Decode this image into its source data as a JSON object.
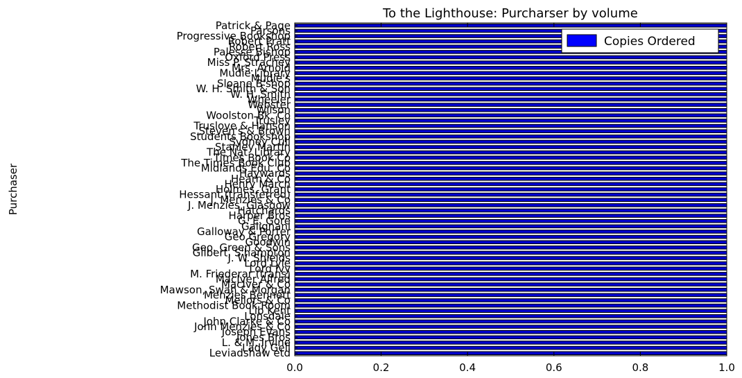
{
  "chart_data": {
    "type": "bar",
    "orientation": "horizontal",
    "title": "To the Lighthouse: Purcharser by volume",
    "xlabel": "",
    "ylabel": "Purchaser",
    "xlim": [
      0,
      1.0
    ],
    "xticks": [
      "0.0",
      "0.2",
      "0.4",
      "0.6",
      "0.8",
      "1.0"
    ],
    "grid": false,
    "legend": {
      "placement": "top-right",
      "entries": [
        "Copies Ordered"
      ]
    },
    "colors": {
      "bar": "#0000cd",
      "bar_edge": "#000000",
      "legend_patch": "#0000ff"
    },
    "categories": [
      "Leviadshaw etd",
      "Lady Gell",
      "L. & M. Irvine",
      "Jones Bros",
      "Joseph Evans",
      "John Menzies & Co",
      "John Clarke & Co",
      "Lonsdale",
      "Lib Kent",
      "Methodist Book Room",
      "Mellors & Co",
      "Menzies Bennett",
      "Mawson, Swan & Morgan",
      "MacIver & Co",
      "MacIver Alfred",
      "M. Friederar (trans)",
      "Lord Ivy",
      "Lord Lyle",
      "J. W. Shields",
      "Gilbert, S'hampton",
      "Geo. Green & Sons",
      "Goodwin",
      "Geo Gregory",
      "Galloway & Porter",
      "Galignani",
      "G. E. Gore",
      "Harper Bros",
      "Hatchards",
      "J. Menzies, Glasgow",
      "J. Menzies & Co",
      "Hessant (transferred)",
      "Holmes, Grant",
      "Henry March",
      "Hearn & Co",
      "Haywards",
      "Midlands Edu. Co",
      "The Times Book Club",
      "Times Book Co",
      "The Nat. Library",
      "Stanley Martin",
      "Sydney Cull",
      "Students Bookshop",
      "Steven's & Brown",
      "Truslove & Hanson",
      "Trusley",
      "Woolston Bk. Co",
      "Wilson",
      "Webster",
      "Wheeler",
      "W. H. Smith",
      "W. H. Smith & Son",
      "Sloane B'shop",
      "Mudie's",
      "Mudie Library",
      "Mrs. Arnold",
      "Miss P. Strachey",
      "Oxford Press",
      "Palesse Bishop",
      "Robert Ross",
      "Robert Pratt",
      "Progressive Bookshop",
      "Parsons",
      "Patrick & Page"
    ],
    "series": [
      {
        "name": "Copies Ordered",
        "values": [
          1,
          1,
          1,
          1,
          1,
          1,
          1,
          1,
          1,
          1,
          1,
          1,
          1,
          1,
          1,
          1,
          1,
          1,
          1,
          1,
          1,
          1,
          1,
          1,
          1,
          1,
          1,
          1,
          1,
          1,
          1,
          1,
          1,
          1,
          1,
          1,
          1,
          1,
          1,
          1,
          1,
          1,
          1,
          1,
          1,
          1,
          1,
          1,
          1,
          1,
          1,
          1,
          1,
          1,
          1,
          1,
          1,
          1,
          1,
          1,
          1,
          1,
          1
        ]
      }
    ]
  }
}
